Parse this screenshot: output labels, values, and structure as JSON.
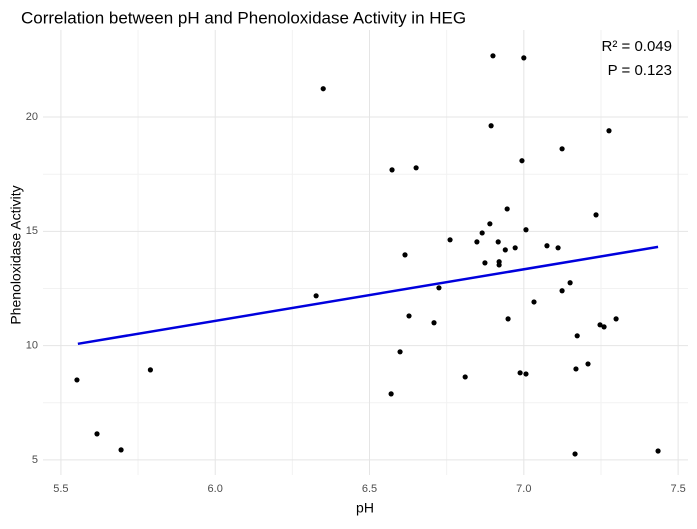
{
  "chart_data": {
    "type": "scatter",
    "title": "Correlation between pH and Phenoloxidase Activity in HEG",
    "x_label": "pH",
    "y_label": "Phenoloxidase Activity",
    "annotations": [
      "R² = 0.049",
      "P = 0.123"
    ],
    "xlim": [
      5.442,
      7.532
    ],
    "ylim": [
      4.34,
      23.59
    ],
    "xticks": [
      5.5,
      {
        "value": 6.0,
        "label": "6.0"
      },
      6.5,
      {
        "value": 7.0,
        "label": "7.0"
      },
      7.5
    ],
    "yticks": [
      5,
      10,
      15,
      20
    ],
    "grid": true,
    "minor_grid": true,
    "series": [
      {
        "color": "#000000",
        "x": [
          5.552,
          5.617,
          5.695,
          5.79,
          6.35,
          6.327,
          6.573,
          6.651,
          6.57,
          6.599,
          6.615,
          6.628,
          6.709,
          6.725,
          6.761,
          6.81,
          6.848,
          6.865,
          6.874,
          6.89,
          6.894,
          6.9,
          6.917,
          6.92,
          6.92,
          6.94,
          6.946,
          6.949,
          6.972,
          6.988,
          6.994,
          7.0,
          7.007,
          7.007,
          7.033,
          7.075,
          7.111,
          7.124,
          7.124,
          7.15,
          7.166,
          7.169,
          7.173,
          7.208,
          7.234,
          7.247,
          7.26,
          7.276,
          7.299,
          7.435
        ],
        "values": [
          8.5,
          6.14,
          5.44,
          8.94,
          21.24,
          12.18,
          17.69,
          17.78,
          7.89,
          9.73,
          13.97,
          11.3,
          11.0,
          12.53,
          14.63,
          8.63,
          14.54,
          14.93,
          13.62,
          15.33,
          19.62,
          22.68,
          14.54,
          13.67,
          13.53,
          14.19,
          15.98,
          11.17,
          14.28,
          8.81,
          18.09,
          22.59,
          8.76,
          15.07,
          11.91,
          14.37,
          14.28,
          18.61,
          12.4,
          12.75,
          5.26,
          8.98,
          10.43,
          9.2,
          15.72,
          10.91,
          10.82,
          19.4,
          11.17,
          5.39
        ]
      },
      {
        "type": "line",
        "color": "#0000dd",
        "x": [
          5.555,
          7.435
        ],
        "values": [
          10.08,
          14.32
        ]
      }
    ]
  }
}
